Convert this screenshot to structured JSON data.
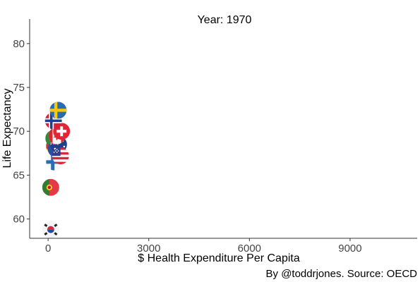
{
  "chart_data": {
    "type": "scatter",
    "title": "Year: 1970",
    "xlabel": "$ Health Expenditure Per Capita",
    "ylabel": "Life Expectancy",
    "caption": "By @toddrjones. Source: OECD",
    "xlim": [
      -550,
      11000
    ],
    "ylim": [
      57.8,
      82.8
    ],
    "xticks": [
      0,
      3000,
      6000,
      9000
    ],
    "yticks": [
      60,
      65,
      70,
      75,
      80
    ],
    "grid": false,
    "legend": "none",
    "marker": "country flag",
    "points": [
      {
        "flag": "south-korea-flag",
        "x": 80,
        "y": 58.8
      },
      {
        "flag": "portugal-flag",
        "x": 80,
        "y": 63.6
      },
      {
        "flag": "finland-flag",
        "x": 190,
        "y": 66.5
      },
      {
        "flag": "germany-flag",
        "x": 190,
        "y": 68.3
      },
      {
        "flag": "italy-flag",
        "x": 170,
        "y": 69.2
      },
      {
        "flag": "france-flag",
        "x": 240,
        "y": 68.0
      },
      {
        "flag": "australia-flag",
        "x": 310,
        "y": 68.5
      },
      {
        "flag": "canada-flag",
        "x": 260,
        "y": 69.5
      },
      {
        "flag": "switzerland-flag",
        "x": 400,
        "y": 70.0
      },
      {
        "flag": "norway-flag",
        "x": 160,
        "y": 71.2
      },
      {
        "flag": "sweden-flag",
        "x": 300,
        "y": 72.4
      },
      {
        "flag": "usa-flag",
        "x": 370,
        "y": 67.2
      }
    ]
  }
}
